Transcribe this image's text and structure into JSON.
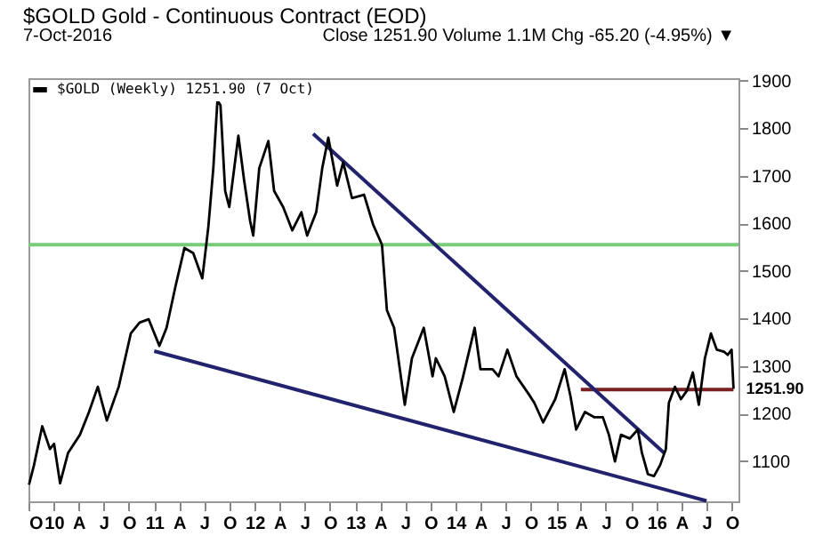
{
  "chart_data": {
    "type": "line",
    "title": "$GOLD Gold - Continuous Contract (EOD)",
    "subtitle": "7-Oct-2016",
    "annotations": [
      "Close 1251.90  Volume 1.1M  Chg -65.20 (-4.95%) ▼",
      {
        "text": "1251.90",
        "x": "2016-10-07",
        "y": 1251.9
      }
    ],
    "legend": "top left",
    "xlim": [
      "2009-10-01",
      "2016-10-25"
    ],
    "xticks": [
      {
        "value": "2009-10-01",
        "label": "O"
      },
      {
        "value": "2010-01-01",
        "label": "10"
      },
      {
        "value": "2010-04-01",
        "label": "A"
      },
      {
        "value": "2010-07-01",
        "label": "J"
      },
      {
        "value": "2010-10-01",
        "label": "O"
      },
      {
        "value": "2011-01-01",
        "label": "11"
      },
      {
        "value": "2011-04-01",
        "label": "A"
      },
      {
        "value": "2011-07-01",
        "label": "J"
      },
      {
        "value": "2011-10-01",
        "label": "O"
      },
      {
        "value": "2012-01-01",
        "label": "12"
      },
      {
        "value": "2012-04-01",
        "label": "A"
      },
      {
        "value": "2012-07-01",
        "label": "J"
      },
      {
        "value": "2012-10-01",
        "label": "O"
      },
      {
        "value": "2013-01-01",
        "label": "13"
      },
      {
        "value": "2013-04-01",
        "label": "A"
      },
      {
        "value": "2013-07-01",
        "label": "J"
      },
      {
        "value": "2013-10-01",
        "label": "O"
      },
      {
        "value": "2014-01-01",
        "label": "14"
      },
      {
        "value": "2014-04-01",
        "label": "A"
      },
      {
        "value": "2014-07-01",
        "label": "J"
      },
      {
        "value": "2014-10-01",
        "label": "O"
      },
      {
        "value": "2015-01-01",
        "label": "15"
      },
      {
        "value": "2015-04-01",
        "label": "A"
      },
      {
        "value": "2015-07-01",
        "label": "J"
      },
      {
        "value": "2015-10-01",
        "label": "O"
      },
      {
        "value": "2016-01-01",
        "label": "16"
      },
      {
        "value": "2016-04-01",
        "label": "A"
      },
      {
        "value": "2016-07-01",
        "label": "J"
      },
      {
        "value": "2016-10-01",
        "label": "O"
      }
    ],
    "ylim": [
      1015,
      1905
    ],
    "yticks": [
      1100,
      1200,
      1300,
      1400,
      1500,
      1600,
      1700,
      1800,
      1900
    ],
    "ref_lines": [
      {
        "axis": "y",
        "value": 1555,
        "color": "#77cc77"
      }
    ],
    "series": [
      {
        "name": "$GOLD (Weekly) 1251.90 (7 Oct)",
        "color": "#000000",
        "x": [
          "2009-10-03",
          "2009-10-21",
          "2009-11-20",
          "2009-12-18",
          "2010-01-02",
          "2010-01-24",
          "2010-02-22",
          "2010-04-06",
          "2010-05-09",
          "2010-06-10",
          "2010-07-13",
          "2010-08-25",
          "2010-10-08",
          "2010-11-09",
          "2010-12-12",
          "2011-01-20",
          "2011-02-15",
          "2011-03-19",
          "2011-04-21",
          "2011-05-23",
          "2011-06-25",
          "2011-07-17",
          "2011-08-04",
          "2011-08-19",
          "2011-08-30",
          "2011-09-16",
          "2011-10-01",
          "2011-11-03",
          "2011-11-24",
          "2011-12-16",
          "2011-12-27",
          "2012-01-18",
          "2012-02-20",
          "2012-03-12",
          "2012-04-14",
          "2012-05-17",
          "2012-06-19",
          "2012-07-10",
          "2012-08-12",
          "2012-09-03",
          "2012-09-25",
          "2012-10-27",
          "2012-11-18",
          "2012-12-20",
          "2013-02-02",
          "2013-03-07",
          "2013-04-08",
          "2013-04-26",
          "2013-05-22",
          "2013-06-30",
          "2013-07-26",
          "2013-09-07",
          "2013-10-09",
          "2013-10-21",
          "2013-11-22",
          "2013-12-25",
          "2014-01-27",
          "2014-03-11",
          "2014-04-01",
          "2014-05-15",
          "2014-06-06",
          "2014-07-08",
          "2014-08-10",
          "2014-09-23",
          "2014-10-14",
          "2014-11-15",
          "2014-12-29",
          "2015-02-01",
          "2015-02-22",
          "2015-03-15",
          "2015-04-16",
          "2015-05-19",
          "2015-06-20",
          "2015-07-12",
          "2015-08-03",
          "2015-08-25",
          "2015-09-26",
          "2015-10-25",
          "2015-11-09",
          "2015-12-01",
          "2015-12-23",
          "2016-01-14",
          "2016-02-04",
          "2016-02-15",
          "2016-03-08",
          "2016-03-30",
          "2016-04-21",
          "2016-05-12",
          "2016-06-03",
          "2016-06-25",
          "2016-07-17",
          "2016-08-07",
          "2016-09-02",
          "2016-09-16",
          "2016-09-30",
          "2016-10-07"
        ],
        "values": [
          1050,
          1091,
          1173,
          1125,
          1136,
          1053,
          1117,
          1155,
          1203,
          1256,
          1185,
          1256,
          1368,
          1391,
          1398,
          1342,
          1380,
          1466,
          1548,
          1537,
          1484,
          1593,
          1716,
          1859,
          1848,
          1668,
          1634,
          1784,
          1690,
          1604,
          1574,
          1716,
          1773,
          1668,
          1634,
          1585,
          1623,
          1574,
          1623,
          1716,
          1780,
          1679,
          1728,
          1653,
          1660,
          1597,
          1555,
          1417,
          1380,
          1218,
          1316,
          1380,
          1278,
          1316,
          1278,
          1203,
          1275,
          1380,
          1293,
          1293,
          1278,
          1334,
          1278,
          1241,
          1222,
          1181,
          1230,
          1293,
          1237,
          1166,
          1203,
          1192,
          1192,
          1155,
          1099,
          1155,
          1147,
          1166,
          1117,
          1072,
          1068,
          1091,
          1125,
          1222,
          1256,
          1230,
          1248,
          1286,
          1218,
          1316,
          1368,
          1334,
          1330,
          1323,
          1334,
          1251.9
        ]
      },
      {
        "color": "#22226e",
        "x": [
          "2012-08-01",
          "2016-02-01"
        ],
        "values": [
          1788,
          1115
        ]
      },
      {
        "color": "#22226e",
        "x": [
          "2011-01-01",
          "2016-07-01"
        ],
        "values": [
          1331,
          1016
        ]
      },
      {
        "color": "#7a2020",
        "x": [
          "2015-04-01",
          "2016-10-07"
        ],
        "values": [
          1250,
          1250
        ]
      }
    ]
  }
}
